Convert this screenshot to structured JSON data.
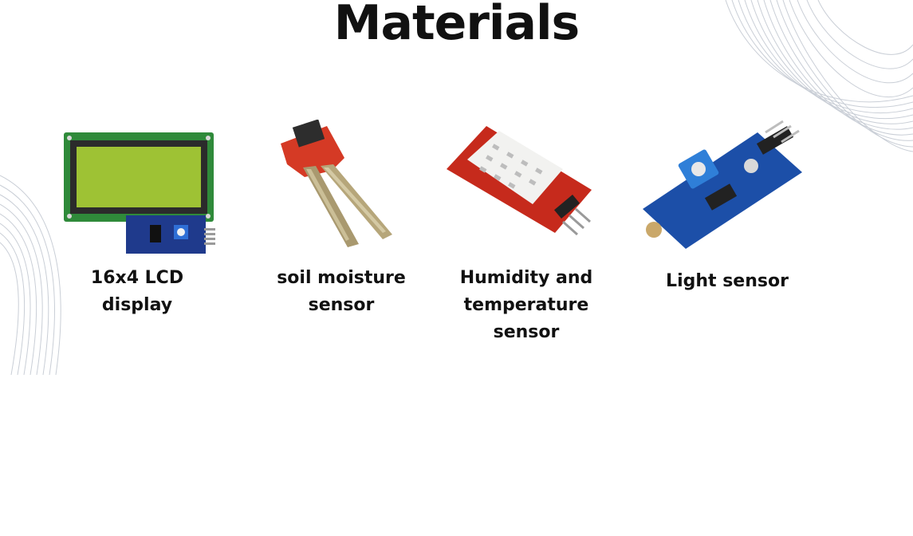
{
  "slide": {
    "title": "Materials",
    "background": "#ffffff",
    "materials": [
      {
        "label": "16x4 LCD\ndisplay",
        "icon": "lcd-display-module"
      },
      {
        "label": "soil moisture\nsensor",
        "icon": "soil-moisture-probe"
      },
      {
        "label": "Humidity and\ntemperature\nsensor",
        "icon": "dht-sensor-module"
      },
      {
        "label": "Light sensor",
        "icon": "ldr-light-sensor-module"
      }
    ]
  }
}
